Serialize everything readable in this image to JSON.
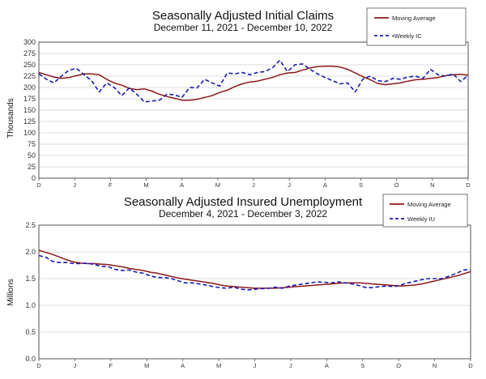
{
  "chart_data": [
    {
      "type": "line",
      "title": "Seasonally Adjusted Initial Claims",
      "subtitle": "December 11, 2021 - December 10, 2022",
      "xlabel": "",
      "ylabel": "Thousands",
      "ylim": [
        0,
        300
      ],
      "yticks": [
        "0",
        "25",
        "50",
        "75",
        "100",
        "125",
        "150",
        "175",
        "200",
        "225",
        "250",
        "275",
        "300"
      ],
      "month_ticks": [
        "D",
        "J",
        "F",
        "M",
        "A",
        "M",
        "J",
        "J",
        "A",
        "S",
        "O",
        "N",
        "D"
      ],
      "legend_position": "top-right",
      "series": [
        {
          "name": "Moving Average",
          "style": "solid",
          "color": "#8b1a1a",
          "values": [
            233,
            228,
            223,
            220,
            222,
            226,
            230,
            230,
            228,
            218,
            210,
            205,
            198,
            195,
            197,
            192,
            185,
            180,
            176,
            172,
            172,
            174,
            178,
            182,
            189,
            194,
            202,
            208,
            212,
            214,
            218,
            222,
            228,
            232,
            233,
            238,
            243,
            246,
            247,
            247,
            245,
            240,
            232,
            224,
            217,
            209,
            206,
            208,
            210,
            214,
            217,
            218,
            220,
            222,
            226,
            228,
            229,
            227
          ]
        },
        {
          "name": "Weekly IC",
          "legend_label": "•Weekly IC",
          "style": "dashed",
          "color": "#1a1ab0",
          "values": [
            230,
            218,
            210,
            225,
            238,
            242,
            228,
            215,
            190,
            210,
            200,
            182,
            199,
            185,
            168,
            170,
            172,
            185,
            184,
            178,
            200,
            199,
            218,
            210,
            203,
            232,
            230,
            233,
            228,
            233,
            235,
            243,
            260,
            235,
            250,
            252,
            240,
            230,
            222,
            215,
            208,
            210,
            190,
            218,
            225,
            215,
            213,
            220,
            218,
            223,
            225,
            220,
            240,
            228,
            225,
            230,
            213,
            227
          ]
        }
      ]
    },
    {
      "type": "line",
      "title": "Seasonally Adjusted Insured Unemployment",
      "subtitle": "December 4, 2021 - December 3, 2022",
      "xlabel": "",
      "ylabel": "Millions",
      "ylim": [
        0.0,
        2.5
      ],
      "yticks": [
        "0.0",
        "0.5",
        "1.0",
        "1.5",
        "2.0",
        "2.5"
      ],
      "month_ticks": [
        "D",
        "J",
        "F",
        "M",
        "A",
        "M",
        "J",
        "J",
        "A",
        "S",
        "O",
        "N",
        "D"
      ],
      "legend_position": "top-right",
      "series": [
        {
          "name": "Moving Average",
          "style": "solid",
          "color": "#8b1a1a",
          "values": [
            2.03,
            1.99,
            1.95,
            1.9,
            1.85,
            1.81,
            1.79,
            1.78,
            1.78,
            1.77,
            1.76,
            1.74,
            1.72,
            1.69,
            1.67,
            1.65,
            1.62,
            1.6,
            1.57,
            1.54,
            1.51,
            1.49,
            1.47,
            1.45,
            1.43,
            1.41,
            1.38,
            1.36,
            1.35,
            1.34,
            1.33,
            1.32,
            1.32,
            1.32,
            1.32,
            1.33,
            1.34,
            1.35,
            1.36,
            1.37,
            1.38,
            1.39,
            1.4,
            1.41,
            1.42,
            1.42,
            1.42,
            1.41,
            1.4,
            1.39,
            1.38,
            1.37,
            1.36,
            1.37,
            1.38,
            1.4,
            1.43,
            1.46,
            1.49,
            1.52,
            1.55,
            1.59,
            1.63
          ]
        },
        {
          "name": "Weekly IU",
          "style": "dashed",
          "color": "#1a1ab0",
          "values": [
            1.93,
            1.9,
            1.82,
            1.8,
            1.8,
            1.78,
            1.78,
            1.79,
            1.76,
            1.73,
            1.72,
            1.67,
            1.65,
            1.66,
            1.62,
            1.6,
            1.55,
            1.52,
            1.52,
            1.5,
            1.46,
            1.42,
            1.42,
            1.4,
            1.38,
            1.35,
            1.33,
            1.32,
            1.34,
            1.3,
            1.29,
            1.3,
            1.31,
            1.32,
            1.34,
            1.32,
            1.36,
            1.38,
            1.4,
            1.42,
            1.44,
            1.43,
            1.42,
            1.44,
            1.42,
            1.4,
            1.37,
            1.33,
            1.33,
            1.35,
            1.36,
            1.35,
            1.38,
            1.42,
            1.45,
            1.48,
            1.5,
            1.5,
            1.5,
            1.55,
            1.6,
            1.66,
            1.67
          ]
        }
      ]
    }
  ]
}
